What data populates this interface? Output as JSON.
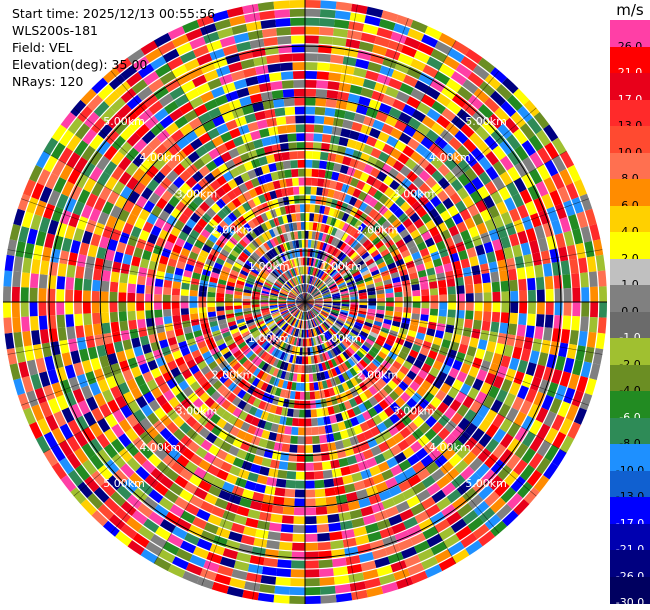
{
  "info": {
    "start_time": "Start time: 2025/12/13 00:55:56",
    "site": "WLS200s-181",
    "field": "Field: VEL",
    "elevation": "Elevation(deg): 35.00",
    "nrays": "NRays: 120"
  },
  "colorbar": {
    "unit": "m/s",
    "ticks": [
      "26.0",
      "21.0",
      "17.0",
      "13.0",
      "10.0",
      "8.0",
      "6.0",
      "4.0",
      "2.0",
      "1.0",
      "0.0",
      "-1.0",
      "-2.0",
      "-4.0",
      "-6.0",
      "-8.0",
      "-10.0",
      "-13.0",
      "-17.0",
      "-21.0",
      "-26.0",
      "-30.0"
    ],
    "colors": [
      "#ff3fa6",
      "#ff0000",
      "#e8001a",
      "#ff2a2a",
      "#ff4a30",
      "#ff7050",
      "#ff8c00",
      "#ffd000",
      "#ffff00",
      "#c0c0c0",
      "#808080",
      "#6b6b6b",
      "#a0c030",
      "#6b8e23",
      "#228b22",
      "#2e8b57",
      "#1e90ff",
      "#1060d0",
      "#0000ff",
      "#0000b0",
      "#000080",
      "#000060"
    ]
  },
  "chart_data": {
    "type": "ppi",
    "field": "VEL",
    "units": "m/s",
    "nrays": 120,
    "elevation_deg": 35.0,
    "range_ring_labels": [
      "1.00km",
      "2.00km",
      "3.00km",
      "4.00km",
      "5.00km"
    ],
    "range_rings_km": [
      1,
      2,
      3,
      4,
      5
    ],
    "max_range_km": 5.9,
    "color_scale": [
      -30,
      26
    ],
    "crosshair": true,
    "radial_lines": true
  }
}
